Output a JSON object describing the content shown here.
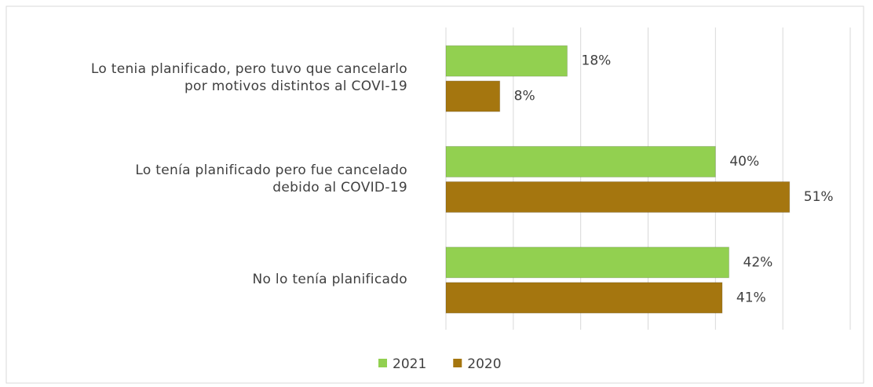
{
  "chart_data": {
    "type": "hbar",
    "categories": [
      "Lo tenia planificado, pero tuvo que cancelarlo\npor motivos distintos al COVI-19",
      "Lo tenía planificado pero fue cancelado\ndebido al COVID-19",
      "No lo tenía planificado"
    ],
    "series": [
      {
        "name": "2021",
        "color": "#92d050",
        "values": [
          18,
          40,
          42
        ],
        "value_labels": [
          "18%",
          "40%",
          "42%"
        ]
      },
      {
        "name": "2020",
        "color": "#a5760f",
        "values": [
          8,
          51,
          41
        ],
        "value_labels": [
          "8%",
          "51%",
          "41%"
        ]
      }
    ],
    "xlim": [
      0,
      60
    ],
    "xticks": [
      0,
      10,
      20,
      30,
      40,
      50,
      60
    ],
    "show_tick_labels": false,
    "grid": true,
    "legend": "bottom"
  }
}
